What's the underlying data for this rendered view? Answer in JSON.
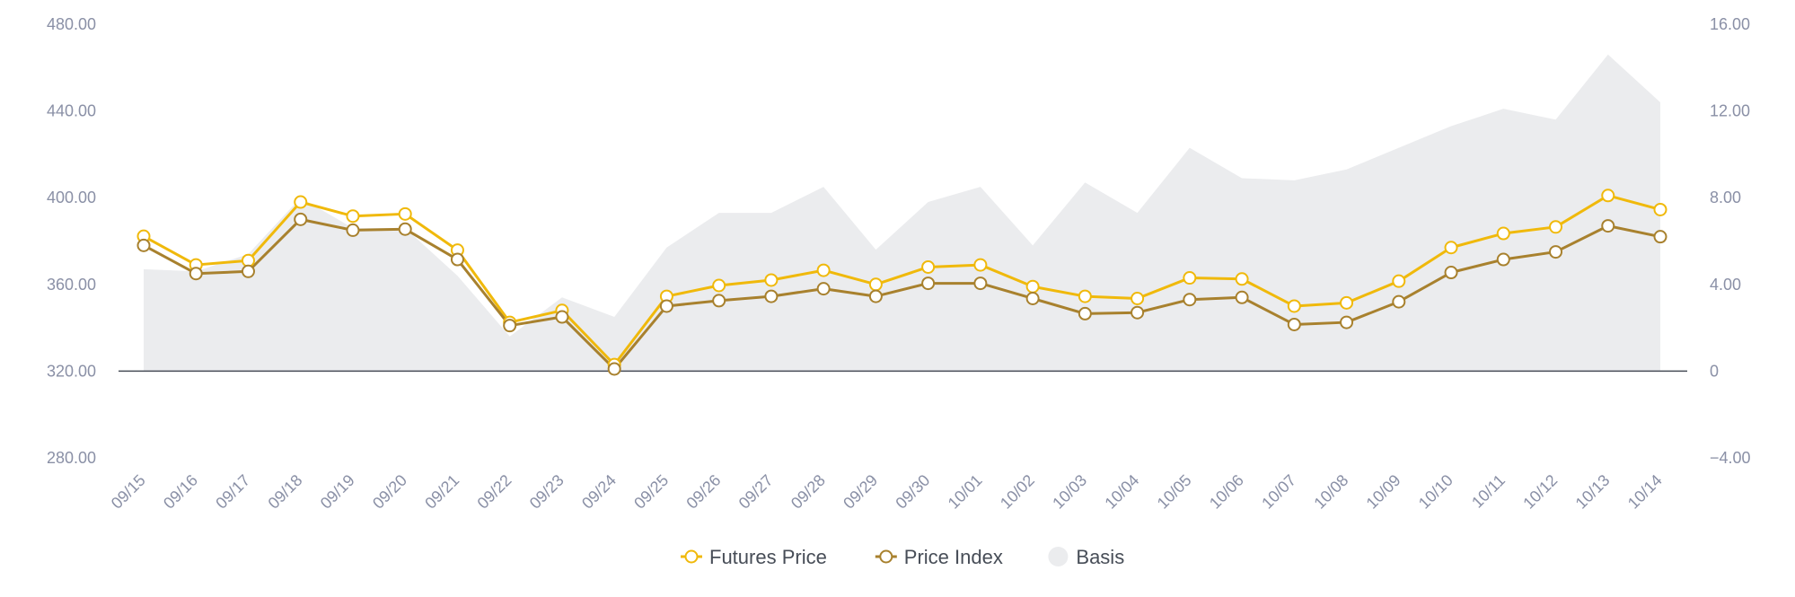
{
  "chart_data": {
    "type": "line",
    "title": "",
    "xlabel": "",
    "ylabel": "",
    "categories": [
      "09/15",
      "09/16",
      "09/17",
      "09/18",
      "09/19",
      "09/20",
      "09/21",
      "09/22",
      "09/23",
      "09/24",
      "09/25",
      "09/26",
      "09/27",
      "09/28",
      "09/29",
      "09/30",
      "10/01",
      "10/02",
      "10/03",
      "10/04",
      "10/05",
      "10/06",
      "10/07",
      "10/08",
      "10/09",
      "10/10",
      "10/11",
      "10/12",
      "10/13",
      "10/14"
    ],
    "y_left": {
      "range": [
        280,
        480
      ],
      "ticks": [
        "480.00",
        "440.00",
        "400.00",
        "360.00",
        "320.00",
        "280.00"
      ],
      "tick_values": [
        480,
        440,
        400,
        360,
        320,
        280
      ]
    },
    "y_right": {
      "range": [
        -4,
        16
      ],
      "ticks": [
        "16.00",
        "12.00",
        "8.00",
        "4.00",
        "0",
        "−4.00"
      ],
      "tick_values": [
        16,
        12,
        8,
        4,
        0,
        -4
      ]
    },
    "grid": false,
    "legend_position": "bottom",
    "series": [
      {
        "name": "Futures Price",
        "kind": "line",
        "axis": "left",
        "color": "#f0b90b",
        "values": [
          382.2,
          369.0,
          371.0,
          398.0,
          391.5,
          392.5,
          375.8,
          342.5,
          348.0,
          323.0,
          354.5,
          359.5,
          362.0,
          366.5,
          360.0,
          368.0,
          369.0,
          359.0,
          354.5,
          353.5,
          363.0,
          362.5,
          350.0,
          351.5,
          361.5,
          377.0,
          383.5,
          386.5,
          401.0,
          394.5
        ]
      },
      {
        "name": "Price Index",
        "kind": "line",
        "axis": "left",
        "color": "#a8812e",
        "values": [
          378.0,
          365.0,
          366.0,
          390.0,
          385.0,
          385.5,
          371.5,
          341.0,
          345.0,
          321.0,
          350.0,
          352.5,
          354.5,
          358.0,
          354.5,
          360.5,
          360.5,
          353.5,
          346.5,
          347.0,
          353.0,
          354.0,
          341.5,
          342.5,
          352.0,
          365.5,
          371.5,
          375.0,
          387.0,
          382.0
        ]
      },
      {
        "name": "Basis",
        "kind": "area",
        "axis": "right",
        "color": "#ebecee",
        "values": [
          4.7,
          4.6,
          5.4,
          8.0,
          6.6,
          6.6,
          4.4,
          1.6,
          3.4,
          2.5,
          5.7,
          7.3,
          7.3,
          8.5,
          5.6,
          7.8,
          8.5,
          5.8,
          8.7,
          7.3,
          10.3,
          8.9,
          8.8,
          9.3,
          10.3,
          11.3,
          12.1,
          11.6,
          14.6,
          12.4
        ]
      }
    ]
  }
}
